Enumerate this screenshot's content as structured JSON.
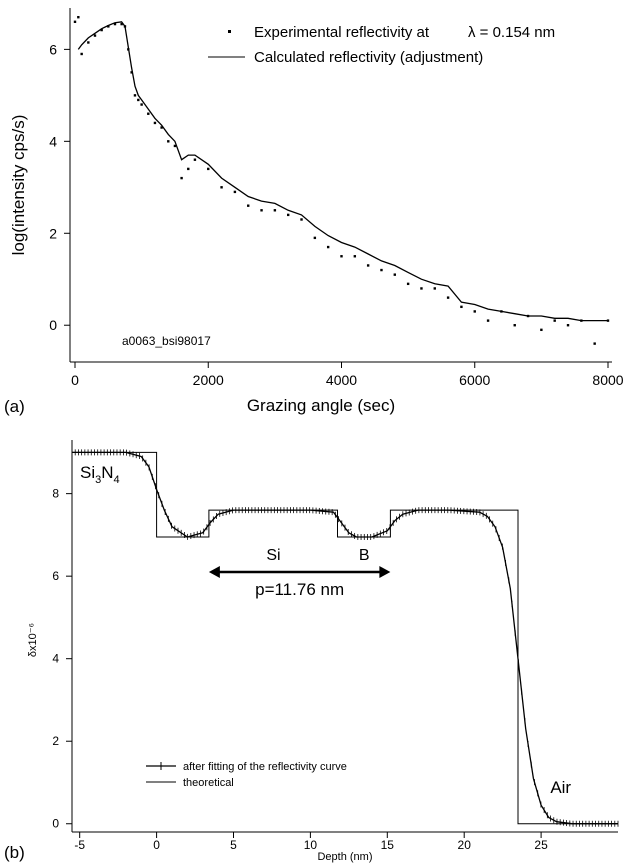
{
  "chart_data": [
    {
      "type": "scatter",
      "panel_label": "(a)",
      "title": "",
      "xlabel": "Grazing angle (sec)",
      "ylabel": "log(intensity cps/s)",
      "xlim": [
        0,
        8000
      ],
      "ylim": [
        -0.8,
        6.9
      ],
      "x_ticks": [
        0,
        2000,
        4000,
        6000,
        8000
      ],
      "y_ticks": [
        0,
        2,
        4,
        6
      ],
      "x_tick_labels": [
        "0",
        "2000",
        "4000",
        "6000",
        "8000"
      ],
      "y_tick_labels": [
        "0",
        "2",
        "4",
        "6"
      ],
      "annotation": "a0063_bsi98017",
      "legend_position": "top-right",
      "series": [
        {
          "name": "Experimental reflectivity at",
          "name_suffix": "λ = 0.154 nm",
          "style": "dots",
          "x": [
            0,
            50,
            100,
            200,
            300,
            400,
            500,
            600,
            700,
            750,
            800,
            850,
            900,
            950,
            1000,
            1100,
            1200,
            1300,
            1400,
            1500,
            1600,
            1700,
            1800,
            2000,
            2200,
            2400,
            2600,
            2800,
            3000,
            3200,
            3400,
            3600,
            3800,
            4000,
            4200,
            4400,
            4600,
            4800,
            5000,
            5200,
            5400,
            5600,
            5800,
            6000,
            6200,
            6400,
            6600,
            6800,
            7000,
            7200,
            7400,
            7600,
            7800,
            8000
          ],
          "y": [
            6.6,
            6.7,
            5.9,
            6.15,
            6.3,
            6.42,
            6.5,
            6.55,
            6.55,
            6.5,
            6.0,
            5.5,
            5.0,
            4.9,
            4.8,
            4.6,
            4.4,
            4.3,
            4.0,
            3.9,
            3.2,
            3.4,
            3.6,
            3.4,
            3.0,
            2.9,
            2.6,
            2.5,
            2.5,
            2.4,
            2.3,
            1.9,
            1.7,
            1.5,
            1.5,
            1.3,
            1.2,
            1.1,
            0.9,
            0.8,
            0.8,
            0.6,
            0.4,
            0.3,
            0.1,
            0.3,
            0.0,
            0.2,
            -0.1,
            0.1,
            0.0,
            0.1,
            -0.4,
            0.1
          ]
        },
        {
          "name": "Calculated reflectivity (adjustment)",
          "style": "line",
          "x": [
            50,
            100,
            200,
            300,
            400,
            500,
            600,
            700,
            750,
            800,
            850,
            900,
            950,
            1000,
            1100,
            1200,
            1300,
            1400,
            1500,
            1600,
            1700,
            1800,
            2000,
            2200,
            2400,
            2600,
            2800,
            3000,
            3200,
            3400,
            3600,
            3800,
            4000,
            4200,
            4400,
            4600,
            4800,
            5000,
            5200,
            5400,
            5600,
            5800,
            6000,
            6200,
            6400,
            6600,
            6800,
            7000,
            7200,
            7400,
            7600,
            7800,
            8000
          ],
          "y": [
            6.0,
            6.1,
            6.25,
            6.35,
            6.45,
            6.52,
            6.58,
            6.6,
            6.5,
            6.05,
            5.6,
            5.2,
            5.0,
            4.9,
            4.7,
            4.5,
            4.35,
            4.15,
            4.0,
            3.6,
            3.7,
            3.7,
            3.5,
            3.2,
            3.0,
            2.8,
            2.7,
            2.65,
            2.5,
            2.4,
            2.15,
            1.95,
            1.8,
            1.7,
            1.55,
            1.4,
            1.3,
            1.15,
            1.0,
            0.9,
            0.85,
            0.5,
            0.45,
            0.35,
            0.3,
            0.25,
            0.2,
            0.2,
            0.15,
            0.15,
            0.1,
            0.1,
            0.1
          ]
        }
      ]
    },
    {
      "type": "line",
      "panel_label": "(b)",
      "title": "",
      "xlabel": "Depth (nm)",
      "ylabel": "δx10⁻⁶",
      "xlim": [
        -5.5,
        30
      ],
      "ylim": [
        -0.2,
        9.3
      ],
      "x_ticks": [
        -5,
        0,
        5,
        10,
        15,
        20,
        25
      ],
      "y_ticks": [
        0,
        2,
        4,
        6,
        8
      ],
      "x_tick_labels": [
        "-5",
        "0",
        "5",
        "10",
        "15",
        "20",
        "25"
      ],
      "y_tick_labels": [
        "0",
        "2",
        "4",
        "6",
        "8"
      ],
      "legend_position": "bottom-left",
      "annotations": {
        "top_left_label": "Si",
        "top_left_label_sub": "3",
        "top_left_label_mid": "N",
        "top_left_label_sub2": "4",
        "si_label": "Si",
        "b_label": "B",
        "period_label": "p=11.76 nm",
        "air_label": "Air",
        "arrow_start_x": 3.4,
        "arrow_end_x": 15.2,
        "arrow_y": 6.1
      },
      "series": [
        {
          "name": "after fitting of the reflectivity curve",
          "style": "line-with-plus-markers",
          "x": [
            -5.5,
            -2,
            -1,
            -0.5,
            0,
            0.5,
            1,
            2,
            3,
            3.5,
            4,
            5,
            7,
            10,
            11.5,
            12,
            12.5,
            13,
            14,
            15,
            15.5,
            16,
            17,
            19,
            21,
            21.5,
            22,
            22.5,
            23,
            23.5,
            24,
            24.5,
            25,
            25.5,
            26,
            27,
            28,
            30
          ],
          "y": [
            9.0,
            9.0,
            8.9,
            8.65,
            8.1,
            7.6,
            7.2,
            6.95,
            7.05,
            7.3,
            7.5,
            7.6,
            7.6,
            7.6,
            7.55,
            7.3,
            7.05,
            6.95,
            6.95,
            7.1,
            7.35,
            7.5,
            7.6,
            7.6,
            7.55,
            7.45,
            7.2,
            6.7,
            5.7,
            4.0,
            2.3,
            1.1,
            0.45,
            0.15,
            0.05,
            0.0,
            0.0,
            0.0
          ]
        },
        {
          "name": "theoretical",
          "style": "step-line",
          "x": [
            -5.5,
            0,
            0,
            3.4,
            3.4,
            11.76,
            11.76,
            15.2,
            15.2,
            23.5,
            23.5,
            30
          ],
          "y": [
            9.0,
            9.0,
            6.95,
            6.95,
            7.6,
            7.6,
            6.95,
            6.95,
            7.6,
            7.6,
            0.0,
            0.0
          ]
        }
      ]
    }
  ]
}
